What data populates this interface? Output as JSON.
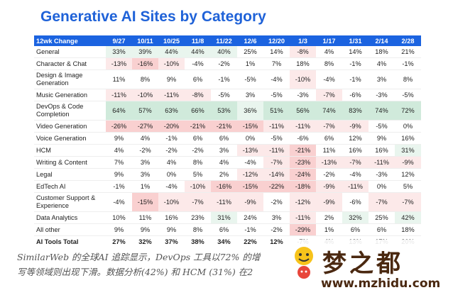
{
  "chart_data": {
    "type": "table",
    "title": "Generative AI Sites by Category",
    "header_label": "12wk Change",
    "columns": [
      "9/27",
      "10/11",
      "10/25",
      "11/8",
      "11/22",
      "12/6",
      "12/20",
      "1/3",
      "1/17",
      "1/31",
      "2/14",
      "2/28"
    ],
    "rows": [
      {
        "label": "General",
        "values": [
          "33%",
          "39%",
          "44%",
          "44%",
          "40%",
          "25%",
          "14%",
          "-8%",
          "4%",
          "14%",
          "18%",
          "21%"
        ]
      },
      {
        "label": "Character & Chat",
        "values": [
          "-13%",
          "-16%",
          "-10%",
          "-4%",
          "-2%",
          "1%",
          "7%",
          "18%",
          "8%",
          "-1%",
          "4%",
          "-1%"
        ]
      },
      {
        "label": "Design & Image Generation",
        "values": [
          "11%",
          "8%",
          "9%",
          "6%",
          "-1%",
          "-5%",
          "-4%",
          "-10%",
          "-4%",
          "-1%",
          "3%",
          "8%"
        ]
      },
      {
        "label": "Music Generation",
        "values": [
          "-11%",
          "-10%",
          "-11%",
          "-8%",
          "-5%",
          "3%",
          "-5%",
          "-3%",
          "-7%",
          "-6%",
          "-3%",
          "-5%"
        ]
      },
      {
        "label": "DevOps & Code Completion",
        "values": [
          "64%",
          "57%",
          "63%",
          "66%",
          "53%",
          "36%",
          "51%",
          "56%",
          "74%",
          "83%",
          "74%",
          "72%"
        ]
      },
      {
        "label": "Video Generation",
        "values": [
          "-26%",
          "-27%",
          "-20%",
          "-21%",
          "-21%",
          "-15%",
          "-11%",
          "-11%",
          "-7%",
          "-9%",
          "-5%",
          "0%"
        ]
      },
      {
        "label": "Voice Generation",
        "values": [
          "9%",
          "4%",
          "-1%",
          "6%",
          "6%",
          "0%",
          "-5%",
          "-6%",
          "6%",
          "12%",
          "9%",
          "16%"
        ]
      },
      {
        "label": "HCM",
        "values": [
          "4%",
          "-2%",
          "-2%",
          "-2%",
          "3%",
          "-13%",
          "-11%",
          "-21%",
          "11%",
          "16%",
          "16%",
          "31%"
        ]
      },
      {
        "label": "Writing & Content",
        "values": [
          "7%",
          "3%",
          "4%",
          "8%",
          "4%",
          "-4%",
          "-7%",
          "-23%",
          "-13%",
          "-7%",
          "-11%",
          "-9%"
        ]
      },
      {
        "label": "Legal",
        "values": [
          "9%",
          "3%",
          "0%",
          "5%",
          "2%",
          "-12%",
          "-14%",
          "-24%",
          "-2%",
          "-4%",
          "-3%",
          "12%"
        ]
      },
      {
        "label": "EdTech AI",
        "values": [
          "-1%",
          "1%",
          "-4%",
          "-10%",
          "-16%",
          "-15%",
          "-22%",
          "-18%",
          "-9%",
          "-11%",
          "0%",
          "5%"
        ]
      },
      {
        "label": "Customer Support & Experience",
        "values": [
          "-4%",
          "-15%",
          "-10%",
          "-7%",
          "-11%",
          "-9%",
          "-2%",
          "-12%",
          "-9%",
          "-6%",
          "-7%",
          "-7%"
        ]
      },
      {
        "label": "Data Analytics",
        "values": [
          "10%",
          "11%",
          "16%",
          "23%",
          "31%",
          "24%",
          "3%",
          "-11%",
          "2%",
          "32%",
          "25%",
          "42%"
        ]
      },
      {
        "label": "All other",
        "values": [
          "9%",
          "9%",
          "9%",
          "8%",
          "6%",
          "-1%",
          "-2%",
          "-29%",
          "1%",
          "6%",
          "6%",
          "18%"
        ]
      },
      {
        "label": "AI Tools Total",
        "values": [
          "27%",
          "32%",
          "37%",
          "38%",
          "34%",
          "22%",
          "12%",
          "-7%",
          "4%",
          "13%",
          "17%",
          "20%"
        ]
      }
    ],
    "colors": {
      "header_bg": "#1b63e0",
      "positive": "#2aa05a",
      "negative": "#e64b4b"
    }
  },
  "caption": {
    "line1": "SimilarWeb 的全球AI 追踪显示，DevOps 工具以72% 的增",
    "line2": "写等领域则出现下滑。数据分析(42%) 和 HCM (31%) 在2"
  },
  "watermark": {
    "name": "梦之都",
    "url": "www.mzhidu.com"
  }
}
